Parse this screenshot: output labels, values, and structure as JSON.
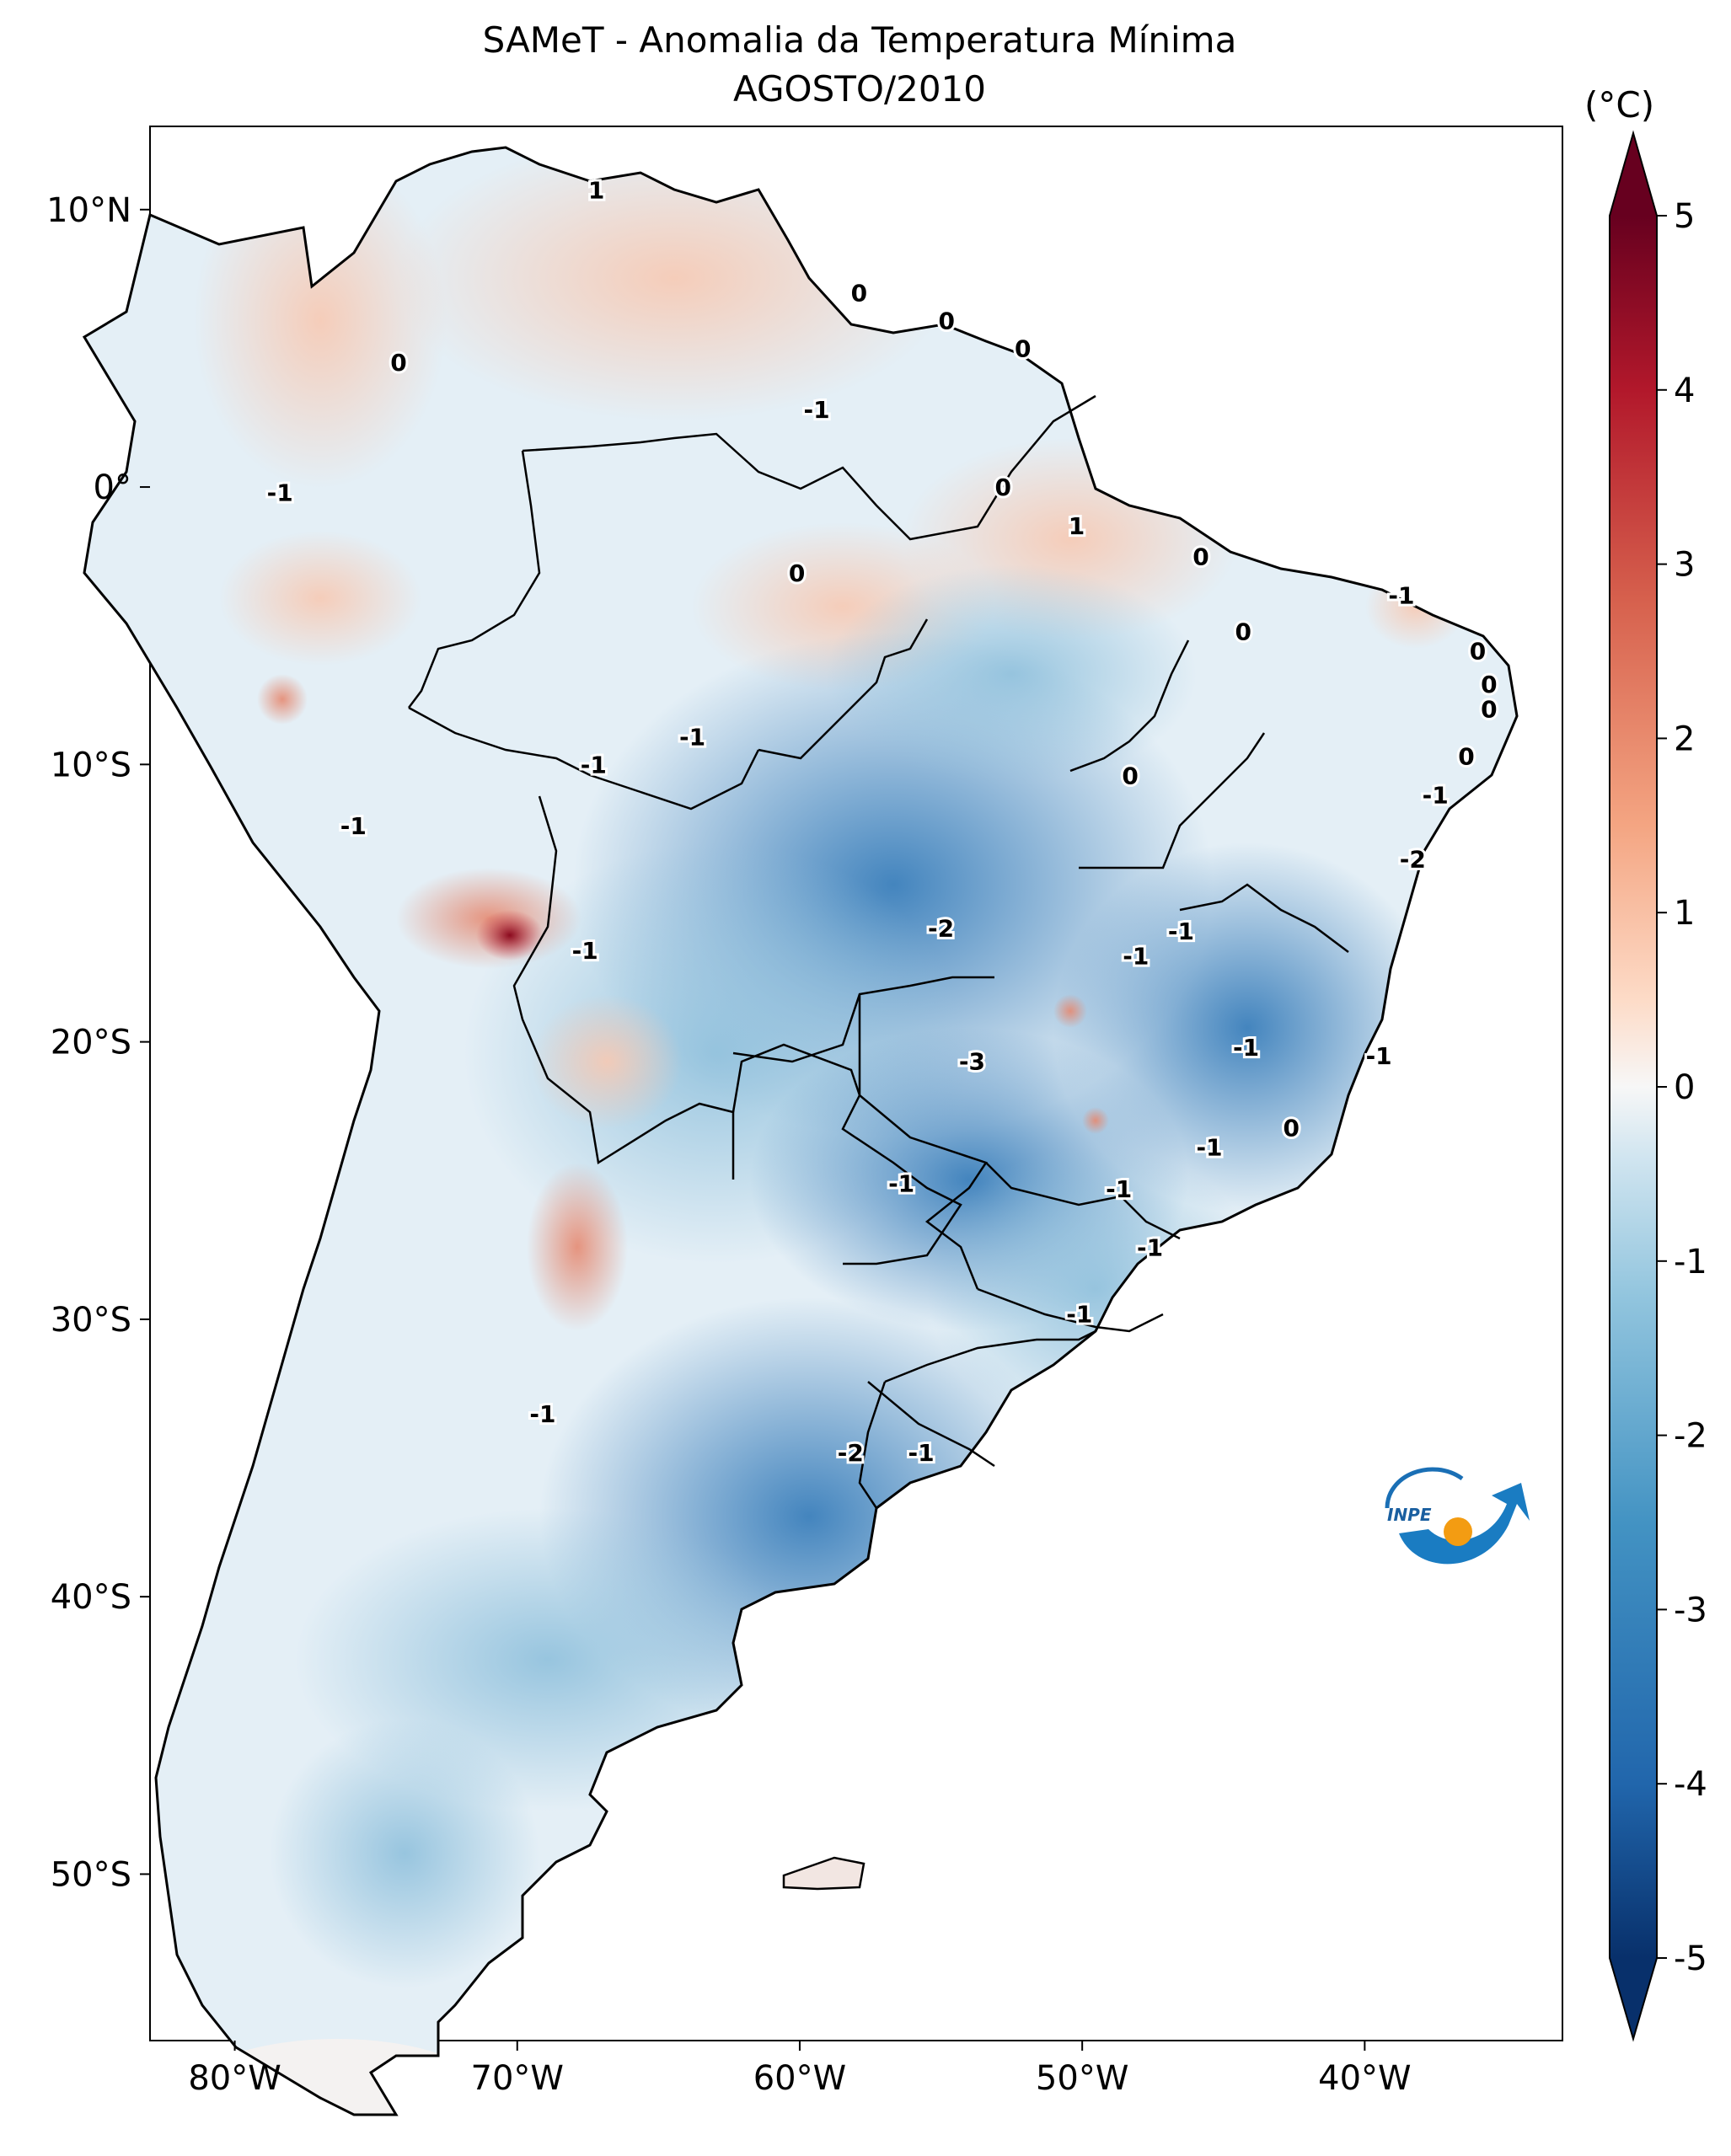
{
  "title": "SAMeT - Anomalia da Temperatura Mínima",
  "subtitle": "AGOSTO/2010",
  "colorbar": {
    "unit": "(°C)",
    "ticks": [
      "5",
      "4",
      "3",
      "2",
      "1",
      "0",
      "-1",
      "-2",
      "-3",
      "-4",
      "-5"
    ],
    "range": [
      -5,
      5
    ],
    "colors": [
      "#08306b",
      "#2166ac",
      "#4393c3",
      "#92c5de",
      "#d1e5f0",
      "#f7f7f7",
      "#fddbc7",
      "#f4a582",
      "#d6604d",
      "#b2182b",
      "#67001f"
    ]
  },
  "axes": {
    "lon_ticks": [
      "80°W",
      "70°W",
      "60°W",
      "50°W",
      "40°W"
    ],
    "lat_ticks": [
      "10°N",
      "0°",
      "10°S",
      "20°S",
      "30°S",
      "40°S",
      "50°S"
    ],
    "lon_range": [
      -83,
      -33
    ],
    "lat_range": [
      -56,
      13
    ]
  },
  "contour_labels": [
    {
      "text": "1",
      "lon": -67.2,
      "lat": 10.7
    },
    {
      "text": "0",
      "lon": -74.2,
      "lat": 4.5
    },
    {
      "text": "0",
      "lon": -57.9,
      "lat": 7.0
    },
    {
      "text": "0",
      "lon": -54.8,
      "lat": 6.0
    },
    {
      "text": "0",
      "lon": -52.1,
      "lat": 5.0
    },
    {
      "text": "-1",
      "lon": -59.4,
      "lat": 2.8
    },
    {
      "text": "-1",
      "lon": -78.4,
      "lat": -0.2
    },
    {
      "text": "0",
      "lon": -52.8,
      "lat": 0.0
    },
    {
      "text": "1",
      "lon": -50.2,
      "lat": -1.4
    },
    {
      "text": "0",
      "lon": -60.1,
      "lat": -3.1
    },
    {
      "text": "0",
      "lon": -45.8,
      "lat": -2.5
    },
    {
      "text": "-1",
      "lon": -38.7,
      "lat": -3.9
    },
    {
      "text": "0",
      "lon": -44.3,
      "lat": -5.2
    },
    {
      "text": "0",
      "lon": -36.0,
      "lat": -5.9
    },
    {
      "text": "0",
      "lon": -35.6,
      "lat": -7.1
    },
    {
      "text": "0",
      "lon": -35.6,
      "lat": -8.0
    },
    {
      "text": "0",
      "lon": -36.4,
      "lat": -9.7
    },
    {
      "text": "-1",
      "lon": -63.8,
      "lat": -9.0
    },
    {
      "text": "-1",
      "lon": -67.3,
      "lat": -10.0
    },
    {
      "text": "0",
      "lon": -48.3,
      "lat": -10.4
    },
    {
      "text": "-1",
      "lon": -37.5,
      "lat": -11.1
    },
    {
      "text": "-1",
      "lon": -75.8,
      "lat": -12.2
    },
    {
      "text": "-2",
      "lon": -38.3,
      "lat": -13.4
    },
    {
      "text": "-2",
      "lon": -55.0,
      "lat": -15.9
    },
    {
      "text": "-1",
      "lon": -46.5,
      "lat": -16.0
    },
    {
      "text": "-1",
      "lon": -48.1,
      "lat": -16.9
    },
    {
      "text": "-1",
      "lon": -67.6,
      "lat": -16.7
    },
    {
      "text": "-1",
      "lon": -44.2,
      "lat": -20.2
    },
    {
      "text": "-3",
      "lon": -53.9,
      "lat": -20.7
    },
    {
      "text": "-1",
      "lon": -39.5,
      "lat": -20.5
    },
    {
      "text": "0",
      "lon": -42.6,
      "lat": -23.1
    },
    {
      "text": "-1",
      "lon": -45.5,
      "lat": -23.8
    },
    {
      "text": "-1",
      "lon": -56.4,
      "lat": -25.1
    },
    {
      "text": "-1",
      "lon": -48.7,
      "lat": -25.3
    },
    {
      "text": "-1",
      "lon": -47.6,
      "lat": -27.4
    },
    {
      "text": "-1",
      "lon": -50.1,
      "lat": -29.8
    },
    {
      "text": "-1",
      "lon": -69.1,
      "lat": -33.4
    },
    {
      "text": "-2",
      "lon": -58.2,
      "lat": -34.8
    },
    {
      "text": "-1",
      "lon": -55.7,
      "lat": -34.8
    }
  ],
  "logo_text": "INPE"
}
